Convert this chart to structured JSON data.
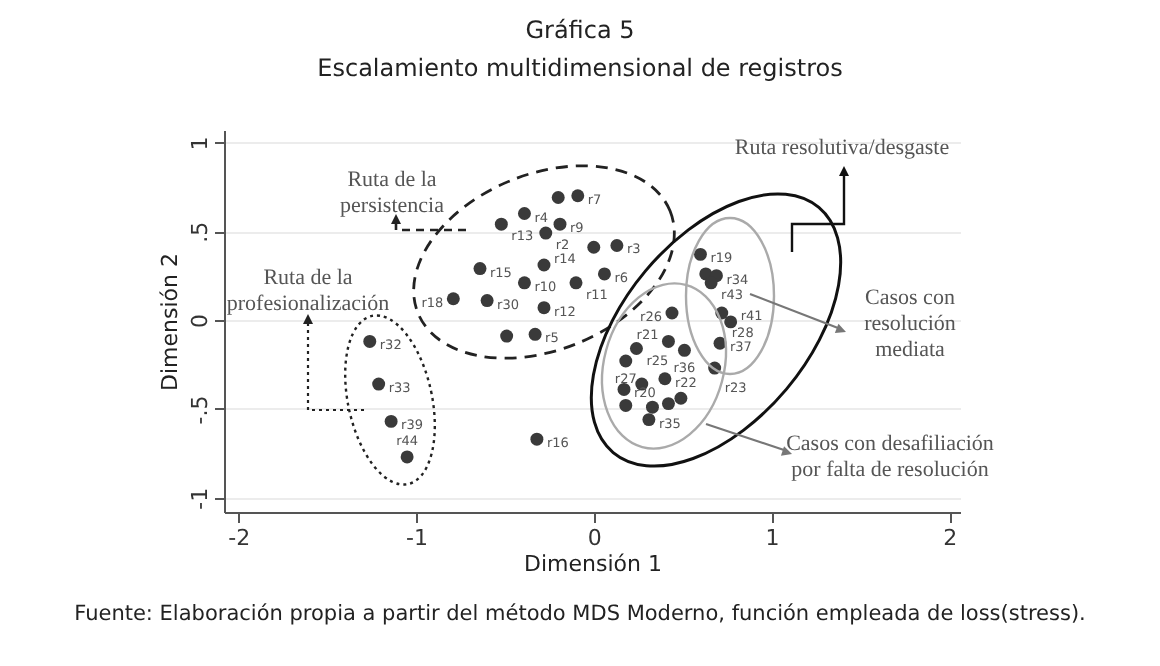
{
  "chart_data": {
    "type": "scatter",
    "title": "Gráfica 5",
    "subtitle": "Escalamiento multidimensional de registros",
    "xlabel": "Dimensión 1",
    "ylabel": "Dimensión 2",
    "xlim": [
      -2.08,
      2.06
    ],
    "xticks": [
      -2,
      -1,
      0,
      1,
      2
    ],
    "ylim": [
      -1.08,
      1.07
    ],
    "yticks": [
      {
        "value": -1,
        "label": "-1"
      },
      {
        "value": -0.5,
        "label": "-.5"
      },
      {
        "value": 0,
        "label": "0"
      },
      {
        "value": 0.5,
        "label": ".5"
      },
      {
        "value": 1,
        "label": "1"
      }
    ],
    "grid": "y",
    "marker": "circle",
    "series": [
      {
        "color": "#3a3a3a",
        "x": [
          -0.09,
          -0.2,
          -0.39,
          -0.52,
          -0.19,
          -0.27,
          0.0,
          0.13,
          -0.64,
          -0.28,
          -0.39,
          -0.1,
          0.06,
          -0.79,
          -0.6,
          -0.28,
          -0.49,
          -0.33,
          -1.26,
          -1.21,
          -1.14,
          -1.05,
          -0.32,
          0.6,
          0.63,
          0.69,
          0.66,
          0.44,
          0.72,
          0.77,
          0.71,
          0.42,
          0.24,
          0.51,
          0.18,
          0.68,
          0.27,
          0.4,
          0.17,
          0.18,
          0.33,
          0.42,
          0.49,
          0.31
        ],
        "values": [
          0.7,
          0.69,
          0.6,
          0.54,
          0.54,
          0.49,
          0.41,
          0.42,
          0.29,
          0.31,
          0.21,
          0.21,
          0.26,
          0.12,
          0.11,
          0.07,
          -0.09,
          -0.08,
          -0.12,
          -0.36,
          -0.57,
          -0.77,
          -0.67,
          0.37,
          0.26,
          0.25,
          0.21,
          0.04,
          0.04,
          -0.01,
          -0.13,
          -0.12,
          -0.16,
          -0.17,
          -0.23,
          -0.27,
          -0.36,
          -0.33,
          -0.39,
          -0.48,
          -0.49,
          -0.47,
          -0.44,
          -0.56
        ]
      }
    ],
    "annotations": [
      {
        "text": "r7",
        "x": -0.09,
        "y": 0.7
      },
      {
        "text": "r4",
        "x": -0.39,
        "y": 0.6
      },
      {
        "text": "r13",
        "x": -0.52,
        "y": 0.54
      },
      {
        "text": "r9",
        "x": -0.19,
        "y": 0.54
      },
      {
        "text": "r2",
        "x": -0.27,
        "y": 0.49
      },
      {
        "text": "r3",
        "x": 0.13,
        "y": 0.42
      },
      {
        "text": "r15",
        "x": -0.64,
        "y": 0.29
      },
      {
        "text": "r14",
        "x": -0.28,
        "y": 0.31
      },
      {
        "text": "r10",
        "x": -0.39,
        "y": 0.21
      },
      {
        "text": "r11",
        "x": -0.1,
        "y": 0.21
      },
      {
        "text": "r6",
        "x": 0.06,
        "y": 0.26
      },
      {
        "text": "r18",
        "x": -0.79,
        "y": 0.12
      },
      {
        "text": "r30",
        "x": -0.6,
        "y": 0.11
      },
      {
        "text": "r12",
        "x": -0.28,
        "y": 0.07
      },
      {
        "text": "r5",
        "x": -0.33,
        "y": -0.08
      },
      {
        "text": "r32",
        "x": -1.26,
        "y": -0.12
      },
      {
        "text": "r33",
        "x": -1.21,
        "y": -0.36
      },
      {
        "text": "r39",
        "x": -1.14,
        "y": -0.57
      },
      {
        "text": "r44",
        "x": -1.05,
        "y": -0.77
      },
      {
        "text": "r16",
        "x": -0.32,
        "y": -0.67
      },
      {
        "text": "r19",
        "x": 0.6,
        "y": 0.37
      },
      {
        "text": "r34",
        "x": 0.69,
        "y": 0.25
      },
      {
        "text": "r43",
        "x": 0.66,
        "y": 0.21
      },
      {
        "text": "r26",
        "x": 0.44,
        "y": 0.04
      },
      {
        "text": "r28",
        "x": 0.72,
        "y": 0.04
      },
      {
        "text": "r41",
        "x": 0.77,
        "y": -0.01
      },
      {
        "text": "r37",
        "x": 0.71,
        "y": -0.13
      },
      {
        "text": "r21",
        "x": 0.42,
        "y": -0.12
      },
      {
        "text": "r25",
        "x": 0.24,
        "y": -0.16
      },
      {
        "text": "r36",
        "x": 0.51,
        "y": -0.17
      },
      {
        "text": "r27",
        "x": 0.18,
        "y": -0.23
      },
      {
        "text": "r23",
        "x": 0.68,
        "y": -0.27
      },
      {
        "text": "r22",
        "x": 0.4,
        "y": -0.33
      },
      {
        "text": "r20",
        "x": 0.17,
        "y": -0.39
      },
      {
        "text": "r35",
        "x": 0.31,
        "y": -0.56
      },
      "Ruta de la persistencia",
      "Ruta de la profesionalización",
      "Ruta resolutiva/desgaste",
      "Casos con resolución mediata",
      "Casos con desafiliación por falta de resolución",
      "Fuente: Elaboración propia a partir del método MDS Moderno, función empleada de loss(stress)."
    ]
  }
}
